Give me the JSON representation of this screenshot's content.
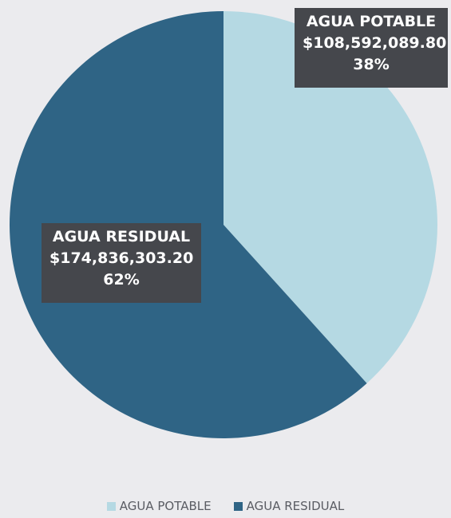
{
  "chart_data": {
    "type": "pie",
    "title": "",
    "start_angle_deg": 0,
    "direction": "clockwise",
    "legend_position": "bottom",
    "slices": [
      {
        "name": "AGUA POTABLE",
        "value": 108592089.8,
        "value_label": "$108,592,089.80",
        "percent_label": "38%",
        "color": "#b5d9e3"
      },
      {
        "name": "AGUA RESIDUAL",
        "value": 174836303.2,
        "value_label": "$174,836,303.20",
        "percent_label": "62%",
        "color": "#2f6485"
      }
    ]
  },
  "label_colors": {
    "box": "#45474c",
    "text": "#ffffff"
  }
}
